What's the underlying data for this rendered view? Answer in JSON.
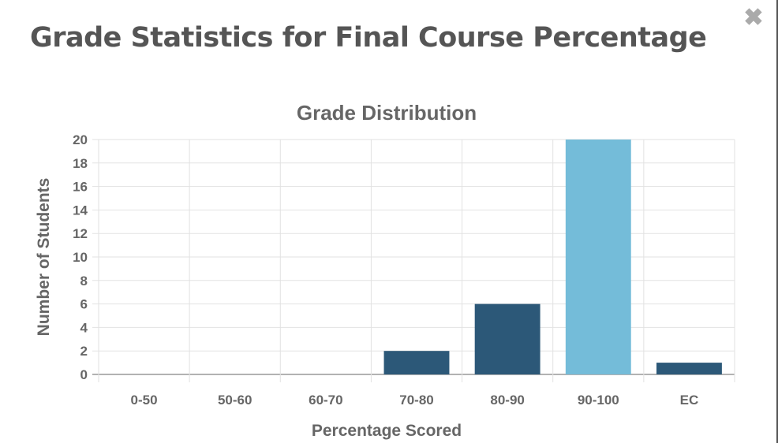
{
  "dialog": {
    "title": "Grade Statistics for Final Course Percentage",
    "close_icon": "close-icon"
  },
  "chart_data": {
    "type": "bar",
    "title": "Grade Distribution",
    "xlabel": "Percentage Scored",
    "ylabel": "Number of Students",
    "categories": [
      "0-50",
      "50-60",
      "60-70",
      "70-80",
      "80-90",
      "90-100",
      "EC"
    ],
    "values": [
      0,
      0,
      0,
      2,
      6,
      20,
      1
    ],
    "highlight": "90-100",
    "ylim": [
      0,
      20
    ],
    "yticks": [
      0,
      2,
      4,
      6,
      8,
      10,
      12,
      14,
      16,
      18,
      20
    ],
    "grid": true,
    "colors": {
      "bar": "#2c5878",
      "highlight": "#74bcd9"
    }
  }
}
